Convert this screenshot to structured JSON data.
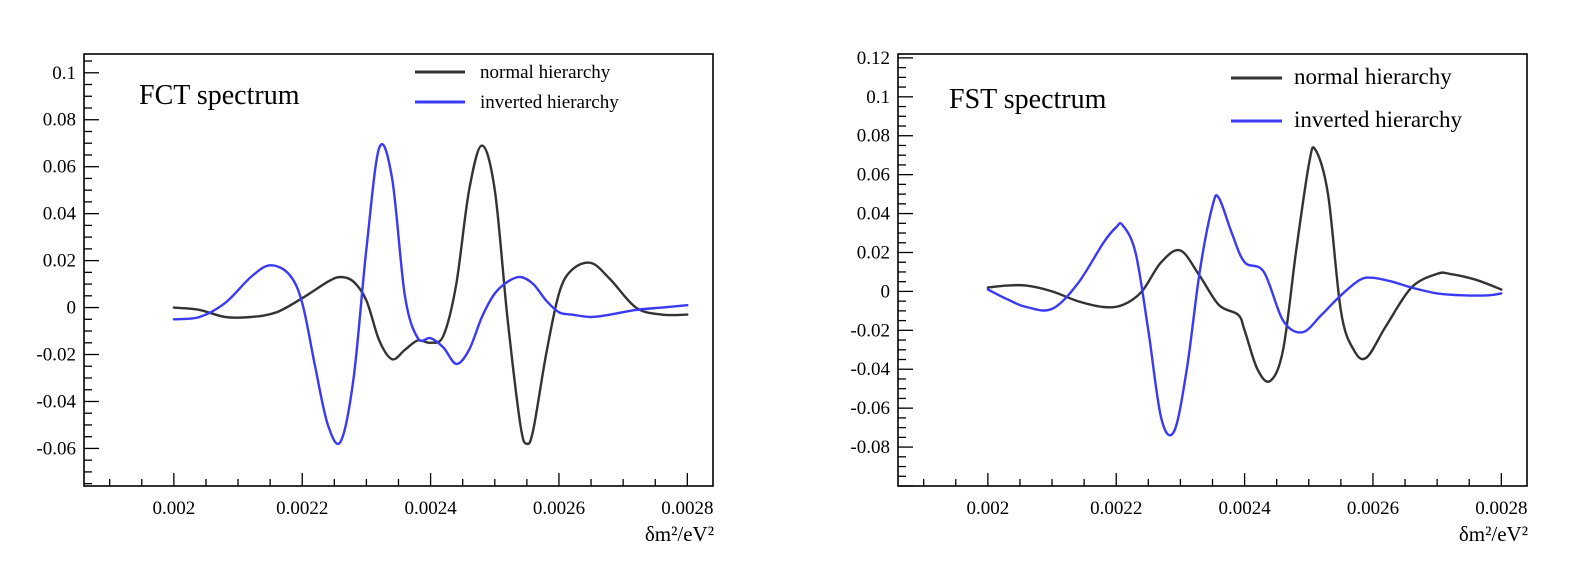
{
  "chart_data": [
    {
      "type": "line",
      "title": "FCT spectrum",
      "xlabel": "δm²/eV²",
      "ylabel": "",
      "xlim": [
        0.00186,
        0.00284
      ],
      "ylim": [
        -0.076,
        0.108
      ],
      "xticks": [
        0.002,
        0.0022,
        0.0024,
        0.0026,
        0.0028
      ],
      "xtick_labels": [
        "0.002",
        "0.0022",
        "0.0024",
        "0.0026",
        "0.0028"
      ],
      "yticks": [
        -0.06,
        -0.04,
        -0.02,
        0,
        0.02,
        0.04,
        0.06,
        0.08,
        0.1
      ],
      "ytick_labels": [
        "-0.06",
        "-0.04",
        "-0.02",
        "0",
        "0.02",
        "0.04",
        "0.06",
        "0.08",
        "0.1"
      ],
      "grid": false,
      "legend_position": "top-right",
      "series": [
        {
          "name": "normal hierarchy",
          "color": "#333333",
          "x": [
            0.002,
            0.00204,
            0.00208,
            0.00212,
            0.00216,
            0.0022,
            0.00224,
            0.00226,
            0.00228,
            0.0023,
            0.00232,
            0.00234,
            0.00236,
            0.00238,
            0.0024,
            0.00242,
            0.00244,
            0.00246,
            0.00248,
            0.0025,
            0.00252,
            0.00254,
            0.00255,
            0.00256,
            0.00258,
            0.0026,
            0.00262,
            0.00265,
            0.00268,
            0.00272,
            0.00276,
            0.0028
          ],
          "y": [
            0.0,
            -0.001,
            -0.004,
            -0.004,
            -0.002,
            0.004,
            0.011,
            0.013,
            0.011,
            0.003,
            -0.014,
            -0.022,
            -0.018,
            -0.014,
            -0.015,
            -0.012,
            0.01,
            0.05,
            0.069,
            0.05,
            -0.005,
            -0.05,
            -0.058,
            -0.052,
            -0.02,
            0.006,
            0.016,
            0.019,
            0.012,
            0.0,
            -0.003,
            -0.003
          ]
        },
        {
          "name": "inverted hierarchy",
          "color": "#3a3af4",
          "x": [
            0.002,
            0.00204,
            0.00208,
            0.00212,
            0.00215,
            0.00218,
            0.0022,
            0.00222,
            0.00224,
            0.00226,
            0.00228,
            0.0023,
            0.00232,
            0.00234,
            0.00236,
            0.00238,
            0.0024,
            0.00242,
            0.00244,
            0.00246,
            0.00248,
            0.0025,
            0.00252,
            0.00254,
            0.00256,
            0.00258,
            0.0026,
            0.00262,
            0.00265,
            0.00268,
            0.00272,
            0.00276,
            0.0028
          ],
          "y": [
            -0.005,
            -0.004,
            0.002,
            0.013,
            0.018,
            0.014,
            0.002,
            -0.025,
            -0.05,
            -0.057,
            -0.03,
            0.025,
            0.068,
            0.055,
            0.005,
            -0.013,
            -0.013,
            -0.017,
            -0.024,
            -0.018,
            -0.004,
            0.006,
            0.011,
            0.013,
            0.01,
            0.003,
            -0.002,
            -0.003,
            -0.004,
            -0.003,
            -0.001,
            0.0,
            0.001
          ]
        }
      ]
    },
    {
      "type": "line",
      "title": "FST spectrum",
      "xlabel": "δm²/eV²",
      "ylabel": "",
      "xlim": [
        0.00186,
        0.00284
      ],
      "ylim": [
        -0.1,
        0.122
      ],
      "xticks": [
        0.002,
        0.0022,
        0.0024,
        0.0026,
        0.0028
      ],
      "xtick_labels": [
        "0.002",
        "0.0022",
        "0.0024",
        "0.0026",
        "0.0028"
      ],
      "yticks": [
        -0.08,
        -0.06,
        -0.04,
        -0.02,
        0,
        0.02,
        0.04,
        0.06,
        0.08,
        0.1,
        0.12
      ],
      "ytick_labels": [
        "-0.08",
        "-0.06",
        "-0.04",
        "-0.02",
        "0",
        "0.02",
        "0.04",
        "0.06",
        "0.08",
        "0.1",
        "0.12"
      ],
      "grid": false,
      "legend_position": "top-right",
      "series": [
        {
          "name": "normal hierarchy",
          "color": "#333333",
          "x": [
            0.002,
            0.00203,
            0.00206,
            0.0021,
            0.00214,
            0.00218,
            0.00221,
            0.00224,
            0.00227,
            0.0023,
            0.00233,
            0.00236,
            0.00239,
            0.0024,
            0.00242,
            0.00244,
            0.00246,
            0.00248,
            0.0025,
            0.00251,
            0.00253,
            0.00255,
            0.00257,
            0.00259,
            0.00262,
            0.00266,
            0.0027,
            0.00272,
            0.00276,
            0.0028
          ],
          "y": [
            0.002,
            0.003,
            0.003,
            0.0,
            -0.005,
            -0.008,
            -0.007,
            0.0,
            0.015,
            0.021,
            0.008,
            -0.007,
            -0.012,
            -0.02,
            -0.04,
            -0.046,
            -0.03,
            0.02,
            0.065,
            0.073,
            0.05,
            -0.01,
            -0.03,
            -0.034,
            -0.018,
            0.002,
            0.009,
            0.009,
            0.006,
            0.001
          ]
        },
        {
          "name": "inverted hierarchy",
          "color": "#3a3af4",
          "x": [
            0.002,
            0.00203,
            0.00206,
            0.0021,
            0.00214,
            0.00218,
            0.0022,
            0.00221,
            0.00223,
            0.00225,
            0.00227,
            0.00229,
            0.00231,
            0.00233,
            0.00235,
            0.00236,
            0.00238,
            0.0024,
            0.00243,
            0.00246,
            0.00249,
            0.00252,
            0.00255,
            0.00258,
            0.0026,
            0.00263,
            0.00266,
            0.0027,
            0.00274,
            0.00278,
            0.0028
          ],
          "y": [
            0.001,
            -0.004,
            -0.008,
            -0.009,
            0.004,
            0.025,
            0.033,
            0.034,
            0.02,
            -0.02,
            -0.065,
            -0.072,
            -0.04,
            0.01,
            0.044,
            0.048,
            0.03,
            0.015,
            0.01,
            -0.015,
            -0.021,
            -0.012,
            -0.002,
            0.006,
            0.007,
            0.005,
            0.002,
            -0.001,
            -0.002,
            -0.002,
            -0.001
          ]
        }
      ]
    }
  ]
}
